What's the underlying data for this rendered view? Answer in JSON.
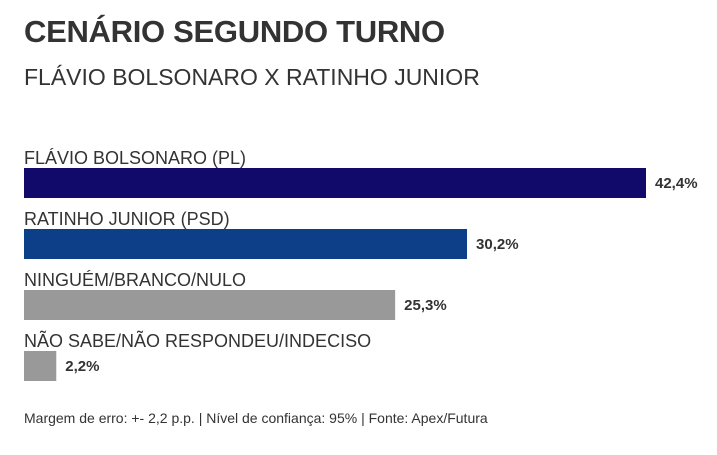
{
  "header": {
    "title": "CENÁRIO SEGUNDO TURNO",
    "subtitle": "FLÁVIO BOLSONARO X RATINHO JUNIOR"
  },
  "chart_data": {
    "type": "bar",
    "orientation": "horizontal",
    "categories": [
      "FLÁVIO BOLSONARO (PL)",
      "RATINHO JUNIOR (PSD)",
      "NINGUÉM/BRANCO/NULO",
      "NÃO SABE/NÃO RESPONDEU/INDECISO"
    ],
    "values": [
      42.4,
      30.2,
      25.3,
      2.2
    ],
    "value_labels": [
      "42,4%",
      "30,2%",
      "25,3%",
      "2,2%"
    ],
    "colors": [
      "#120a6b",
      "#0c3f87",
      "#999999",
      "#999999"
    ],
    "xlim": [
      0,
      42.4
    ],
    "grid": false,
    "legend": "none"
  },
  "footer": {
    "note": "Margem de erro: +- 2,2 p.p. | Nível de confiança: 95% | Fonte: Apex/Futura"
  }
}
